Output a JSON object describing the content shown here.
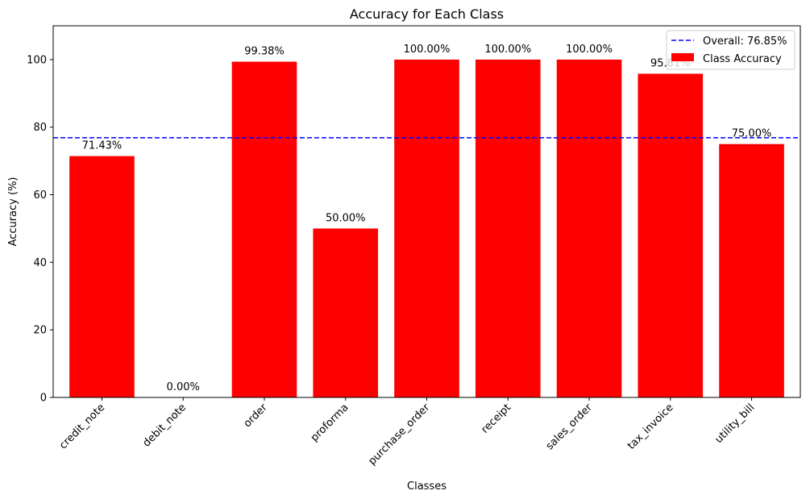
{
  "chart_data": {
    "type": "bar",
    "title": "Accuracy for Each Class",
    "xlabel": "Classes",
    "ylabel": "Accuracy (%)",
    "ylim": [
      0,
      110
    ],
    "yticks": [
      0,
      20,
      40,
      60,
      80,
      100
    ],
    "categories": [
      "credit_note",
      "debit_note",
      "order",
      "proforma",
      "purchase_order",
      "receipt",
      "sales_order",
      "tax_invoice",
      "utility_bill"
    ],
    "values": [
      71.43,
      0.0,
      99.38,
      50.0,
      100.0,
      100.0,
      100.0,
      95.81,
      75.0
    ],
    "data_labels": [
      "71.43%",
      "0.00%",
      "99.38%",
      "50.00%",
      "100.00%",
      "100.00%",
      "100.00%",
      "95.81%",
      "75.00%"
    ],
    "bar_color": "#ff0000",
    "reference_line": {
      "value": 76.85,
      "color": "#0000ff",
      "style": "dashed"
    },
    "legend": {
      "placement": "top-right",
      "entries": [
        {
          "label": "Overall: 76.85%",
          "kind": "dashed-line",
          "color": "#0000ff"
        },
        {
          "label": "Class Accuracy",
          "kind": "bar",
          "color": "#ff0000"
        }
      ]
    },
    "grid": false
  }
}
